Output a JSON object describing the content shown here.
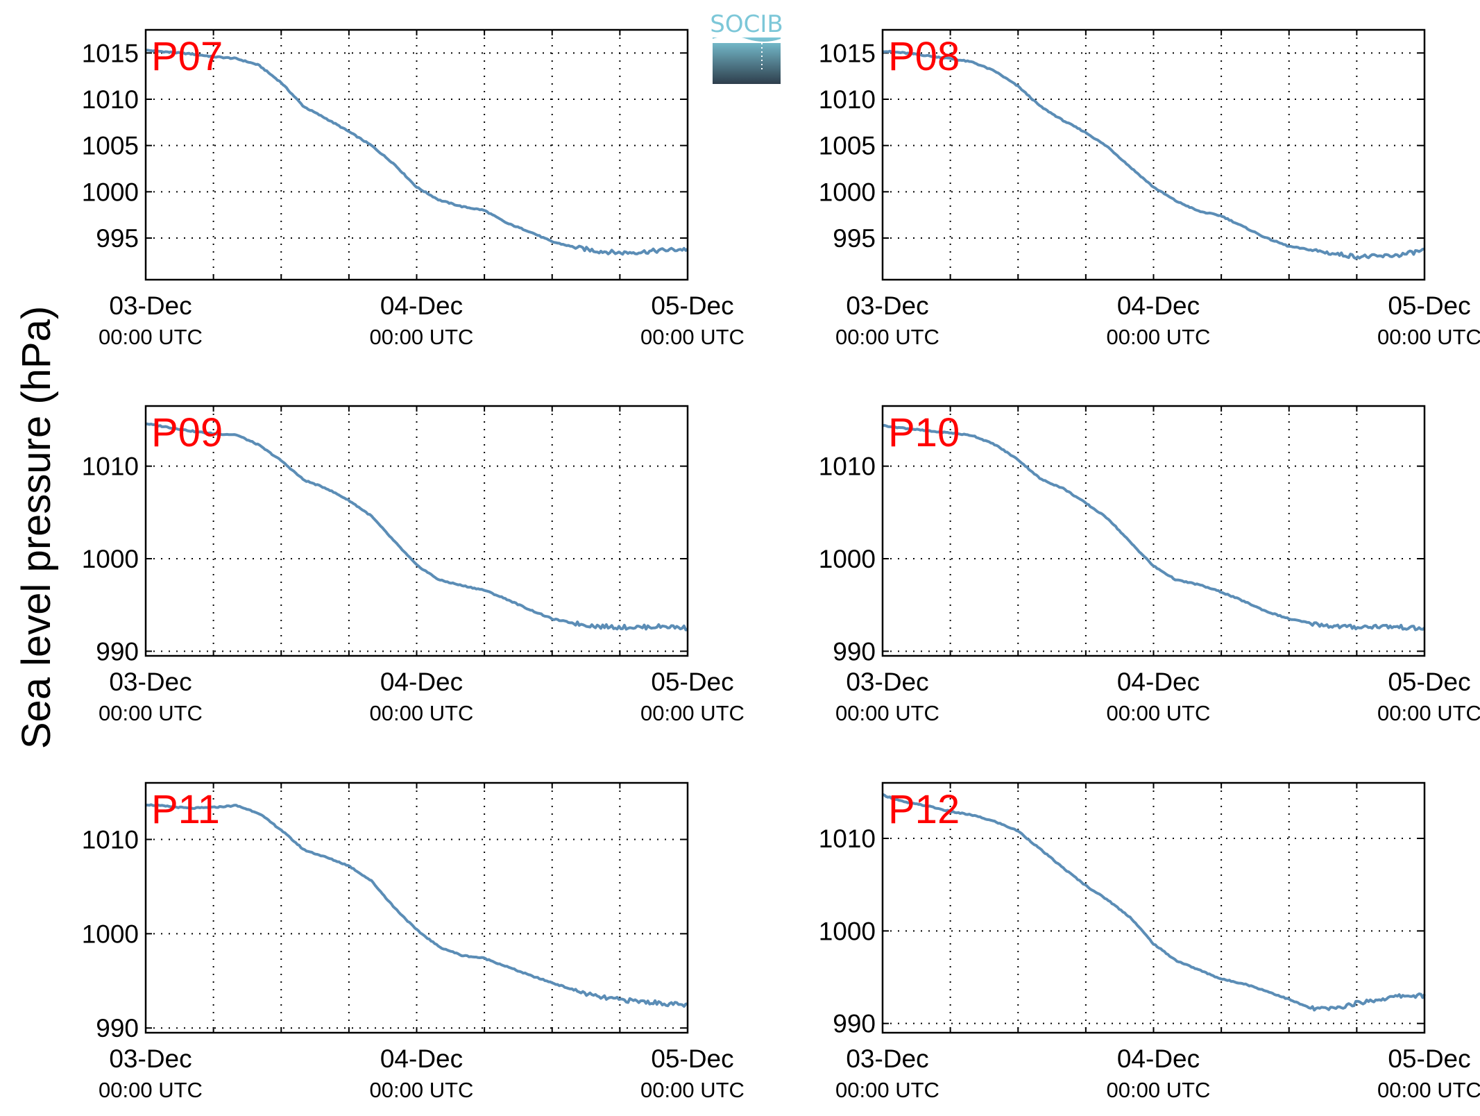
{
  "figure": {
    "ylabel": "Sea level pressure (hPa)",
    "logo_text": "SOCIB",
    "colors": {
      "line": "#5b8db6",
      "station_label": "#ff0000",
      "logo_top": "#7cc7d8",
      "logo_bottom": "#2e3e4c"
    }
  },
  "chart_data": [
    {
      "type": "line",
      "title": "P07",
      "xlabel": "",
      "ylabel": "Sea level pressure (hPa)",
      "x_ticks": [
        "03-Dec",
        "04-Dec",
        "05-Dec"
      ],
      "x_tick_sub": "00:00 UTC",
      "xlim": [
        "2015-12-03 00:00",
        "2015-12-05 00:00"
      ],
      "xlim_hours": [
        0,
        48
      ],
      "ylim": [
        990.5,
        1017.5
      ],
      "yticks": [
        995,
        1000,
        1005,
        1010,
        1015
      ],
      "grid": true,
      "series": [
        {
          "x_hours": [
            0,
            2,
            4,
            6,
            8,
            10,
            12,
            14,
            16,
            18,
            20,
            22,
            24,
            26,
            28,
            30,
            32,
            34,
            36,
            38,
            40,
            42,
            44,
            46,
            48
          ],
          "values": [
            1015.3,
            1015.1,
            1014.9,
            1014.6,
            1014.4,
            1013.7,
            1011.8,
            1009.2,
            1007.9,
            1006.5,
            1005.0,
            1003.0,
            1000.5,
            999.1,
            998.4,
            998.0,
            996.6,
            995.7,
            994.6,
            994.0,
            993.6,
            993.4,
            993.5,
            993.7,
            993.8
          ]
        }
      ]
    },
    {
      "type": "line",
      "title": "P08",
      "xlabel": "",
      "ylabel": "Sea level pressure (hPa)",
      "x_ticks": [
        "03-Dec",
        "04-Dec",
        "05-Dec"
      ],
      "x_tick_sub": "00:00 UTC",
      "xlim": [
        "2015-12-03 00:00",
        "2015-12-05 00:00"
      ],
      "xlim_hours": [
        0,
        48
      ],
      "ylim": [
        990.5,
        1017.5
      ],
      "yticks": [
        995,
        1000,
        1005,
        1010,
        1015
      ],
      "grid": true,
      "series": [
        {
          "x_hours": [
            0,
            2,
            4,
            6,
            8,
            10,
            12,
            14,
            16,
            18,
            20,
            22,
            24,
            26,
            28,
            30,
            32,
            34,
            36,
            38,
            40,
            42,
            44,
            46,
            48
          ],
          "values": [
            1015.2,
            1015.0,
            1014.7,
            1014.4,
            1014.0,
            1013.0,
            1011.4,
            1009.2,
            1007.7,
            1006.4,
            1004.8,
            1002.6,
            1000.5,
            999.0,
            997.9,
            997.4,
            996.2,
            995.0,
            994.1,
            993.7,
            993.3,
            993.0,
            993.0,
            993.2,
            993.7
          ]
        }
      ]
    },
    {
      "type": "line",
      "title": "P09",
      "xlabel": "",
      "ylabel": "Sea level pressure (hPa)",
      "x_ticks": [
        "03-Dec",
        "04-Dec",
        "05-Dec"
      ],
      "x_tick_sub": "00:00 UTC",
      "xlim": [
        "2015-12-03 00:00",
        "2015-12-05 00:00"
      ],
      "xlim_hours": [
        0,
        48
      ],
      "ylim": [
        989.5,
        1016.5
      ],
      "yticks": [
        990,
        1000,
        1010
      ],
      "grid": true,
      "series": [
        {
          "x_hours": [
            0,
            2,
            4,
            6,
            8,
            10,
            12,
            14,
            16,
            18,
            20,
            22,
            24,
            26,
            28,
            30,
            32,
            34,
            36,
            38,
            40,
            42,
            44,
            46,
            48
          ],
          "values": [
            1014.6,
            1014.2,
            1013.8,
            1013.5,
            1013.4,
            1012.3,
            1010.6,
            1008.5,
            1007.6,
            1006.3,
            1004.6,
            1001.9,
            999.3,
            997.7,
            997.1,
            996.6,
            995.6,
            994.5,
            993.5,
            993.0,
            992.7,
            992.6,
            992.6,
            992.7,
            992.5
          ]
        }
      ]
    },
    {
      "type": "line",
      "title": "P10",
      "xlabel": "",
      "ylabel": "Sea level pressure (hPa)",
      "x_ticks": [
        "03-Dec",
        "04-Dec",
        "05-Dec"
      ],
      "x_tick_sub": "00:00 UTC",
      "xlim": [
        "2015-12-03 00:00",
        "2015-12-05 00:00"
      ],
      "xlim_hours": [
        0,
        48
      ],
      "ylim": [
        989.5,
        1016.5
      ],
      "yticks": [
        990,
        1000,
        1010
      ],
      "grid": true,
      "series": [
        {
          "x_hours": [
            0,
            2,
            4,
            6,
            8,
            10,
            12,
            14,
            16,
            18,
            20,
            22,
            24,
            26,
            28,
            30,
            32,
            34,
            36,
            38,
            40,
            42,
            44,
            46,
            48
          ],
          "values": [
            1014.4,
            1014.1,
            1013.8,
            1013.6,
            1013.3,
            1012.3,
            1010.7,
            1008.6,
            1007.6,
            1006.0,
            1004.3,
            1001.7,
            999.2,
            997.7,
            997.2,
            996.4,
            995.4,
            994.3,
            993.5,
            993.0,
            992.7,
            992.6,
            992.7,
            992.6,
            992.4
          ]
        }
      ]
    },
    {
      "type": "line",
      "title": "P11",
      "xlabel": "",
      "ylabel": "Sea level pressure (hPa)",
      "x_ticks": [
        "03-Dec",
        "04-Dec",
        "05-Dec"
      ],
      "x_tick_sub": "00:00 UTC",
      "xlim": [
        "2015-12-03 00:00",
        "2015-12-05 00:00"
      ],
      "xlim_hours": [
        0,
        48
      ],
      "ylim": [
        989.5,
        1016
      ],
      "yticks": [
        990,
        1000,
        1010
      ],
      "grid": true,
      "series": [
        {
          "x_hours": [
            0,
            2,
            4,
            6,
            8,
            10,
            12,
            14,
            16,
            18,
            20,
            22,
            24,
            26,
            28,
            30,
            32,
            34,
            36,
            38,
            40,
            42,
            44,
            46,
            48
          ],
          "values": [
            1013.7,
            1013.5,
            1013.3,
            1013.4,
            1013.6,
            1012.8,
            1011.0,
            1008.9,
            1008.1,
            1007.2,
            1005.6,
            1002.8,
            1000.4,
            998.6,
            997.7,
            997.4,
            996.5,
            995.6,
            994.8,
            994.0,
            993.3,
            993.0,
            992.8,
            992.6,
            992.4
          ]
        }
      ]
    },
    {
      "type": "line",
      "title": "P12",
      "xlabel": "",
      "ylabel": "Sea level pressure (hPa)",
      "x_ticks": [
        "03-Dec",
        "04-Dec",
        "05-Dec"
      ],
      "x_tick_sub": "00:00 UTC",
      "xlim": [
        "2015-12-03 00:00",
        "2015-12-05 00:00"
      ],
      "xlim_hours": [
        0,
        48
      ],
      "ylim": [
        989,
        1016
      ],
      "yticks": [
        990,
        1000,
        1010
      ],
      "grid": true,
      "series": [
        {
          "x_hours": [
            0,
            2,
            4,
            6,
            8,
            10,
            12,
            14,
            16,
            18,
            20,
            22,
            24,
            26,
            28,
            30,
            32,
            34,
            36,
            38,
            40,
            42,
            44,
            46,
            48
          ],
          "values": [
            1014.7,
            1013.9,
            1013.5,
            1012.9,
            1012.5,
            1011.8,
            1010.8,
            1008.8,
            1006.8,
            1004.9,
            1003.3,
            1001.4,
            998.6,
            996.8,
            995.8,
            994.8,
            994.3,
            993.5,
            992.6,
            991.6,
            991.6,
            992.2,
            992.6,
            993.0,
            993.0
          ]
        }
      ]
    }
  ]
}
